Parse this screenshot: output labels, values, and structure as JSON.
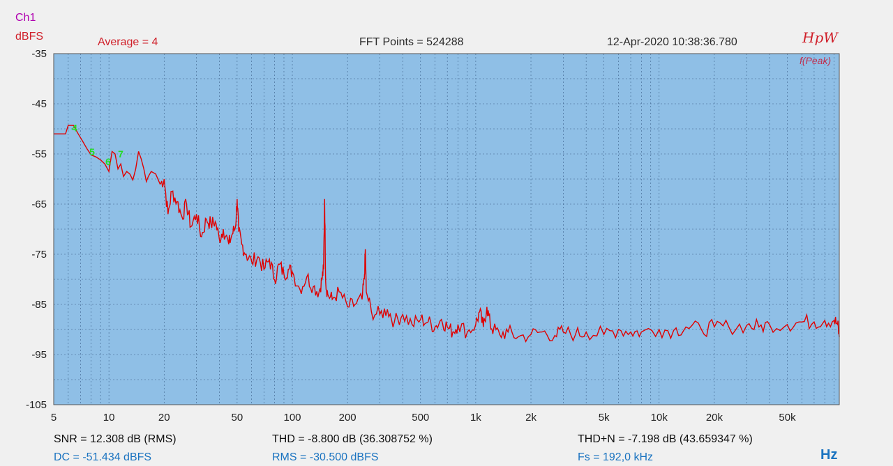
{
  "header": {
    "channel": "Ch1",
    "unit": "dBFS",
    "average": "Average = 4",
    "fft_points": "FFT Points = 524288",
    "timestamp": "12-Apr-2020 10:38:36.780",
    "brand": "HpW",
    "mode": "f(Peak)"
  },
  "stats": {
    "snr": "SNR = 12.308 dB (RMS)",
    "thd": "THD = -8.800 dB (36.308752 %)",
    "thdn": "THD+N = -7.198 dB (43.659347 %)",
    "dc": "DC = -51.434 dBFS",
    "rms": "RMS = -30.500 dBFS",
    "fs": "Fs = 192,0 kHz"
  },
  "x_unit": "Hz",
  "colors": {
    "plot_bg": "#8fbfe6",
    "grid": "#3a5f88",
    "trace": "#e00000",
    "harmonic_marker": "#22dd22"
  },
  "chart_data": {
    "type": "line",
    "xscale": "log",
    "xlim": [
      5,
      96000
    ],
    "ylim": [
      -105,
      -35
    ],
    "ylabel": "dBFS",
    "xlabel": "Hz",
    "grid": true,
    "x_ticks": [
      {
        "v": 5,
        "label": "5"
      },
      {
        "v": 10,
        "label": "10"
      },
      {
        "v": 20,
        "label": "20"
      },
      {
        "v": 50,
        "label": "50"
      },
      {
        "v": 100,
        "label": "100"
      },
      {
        "v": 200,
        "label": "200"
      },
      {
        "v": 500,
        "label": "500"
      },
      {
        "v": 1000,
        "label": "1k"
      },
      {
        "v": 2000,
        "label": "2k"
      },
      {
        "v": 5000,
        "label": "5k"
      },
      {
        "v": 10000,
        "label": "10k"
      },
      {
        "v": 20000,
        "label": "20k"
      },
      {
        "v": 50000,
        "label": "50k"
      }
    ],
    "y_ticks": [
      -35,
      -45,
      -55,
      -65,
      -75,
      -85,
      -95,
      -105
    ],
    "harmonic_labels": [
      {
        "label": "4",
        "x": 6.5,
        "y": -50.5
      },
      {
        "label": "5",
        "x": 8.1,
        "y": -55.3
      },
      {
        "label": "6",
        "x": 9.9,
        "y": -57.2
      },
      {
        "label": "7",
        "x": 11.6,
        "y": -55.7
      }
    ],
    "series": [
      {
        "x": [
          5,
          5.8,
          6.0,
          6.4,
          6.8,
          7.2,
          7.6,
          8.0,
          8.5,
          9.0,
          9.5,
          10.0,
          10.4,
          10.8,
          11.2,
          11.6,
          12.0,
          12.5,
          13.0,
          13.5,
          14.0,
          14.5,
          15.0,
          15.5,
          16.0,
          16.4,
          17.0,
          18.0,
          19.0,
          20.0,
          21.0,
          22.0,
          23.5,
          25.0,
          26.5,
          28.0,
          30.0,
          32.0,
          34.0,
          36.0,
          38.0,
          40.0,
          42.0,
          45.0,
          47.0,
          49.0,
          50.0,
          51.0,
          53.0,
          56.0,
          60.0,
          65.0,
          70.0,
          75.0,
          80.0,
          85.0,
          90.0,
          95.0,
          100.0,
          110.0,
          120.0,
          130.0,
          140.0,
          145.0,
          148.0,
          150.0,
          152.0,
          156.0,
          165.0,
          180.0,
          200.0,
          220.0,
          240.0,
          247.0,
          250.0,
          253.0,
          270.0,
          300.0,
          330.0,
          360.0,
          400.0,
          450.0,
          500.0,
          550.0,
          600.0,
          650.0,
          700.0,
          750.0,
          800.0,
          900.0,
          1000.0,
          1050.0,
          1100.0,
          1150.0,
          1200.0,
          1250.0,
          1350.0,
          1500.0,
          1700.0,
          2000.0,
          2300.0,
          2700.0,
          3000.0,
          3500.0,
          4000.0,
          5000.0,
          6000.0,
          7000.0,
          8000.0,
          10000.0,
          12000.0,
          14000.0,
          17000.0,
          20000.0,
          24000.0,
          30000.0,
          35000.0,
          40000.0,
          50000.0,
          60000.0,
          70000.0,
          80000.0,
          90000.0,
          94000.0,
          96000.0
        ],
        "y": [
          -51.0,
          -51.0,
          -49.3,
          -49.3,
          -51.0,
          -52.5,
          -54.0,
          -55.2,
          -55.6,
          -56.2,
          -57.0,
          -58.5,
          -54.5,
          -55.0,
          -58.0,
          -57.0,
          -59.5,
          -58.5,
          -59.0,
          -60.2,
          -58.0,
          -54.5,
          -56.0,
          -58.0,
          -60.5,
          -59.5,
          -58.5,
          -59.0,
          -61.0,
          -60.0,
          -67.0,
          -62.5,
          -64.5,
          -67.5,
          -65.0,
          -69.5,
          -67.0,
          -71.5,
          -68.0,
          -69.0,
          -68.5,
          -72.0,
          -70.0,
          -73.0,
          -71.0,
          -69.5,
          -64.0,
          -70.5,
          -73.0,
          -75.0,
          -76.5,
          -75.5,
          -78.0,
          -76.0,
          -80.0,
          -77.0,
          -79.0,
          -78.0,
          -78.5,
          -82.0,
          -79.5,
          -81.5,
          -82.5,
          -80.0,
          -78.0,
          -64.0,
          -80.5,
          -83.0,
          -84.0,
          -82.5,
          -85.5,
          -85.0,
          -84.0,
          -80.0,
          -74.0,
          -82.5,
          -86.5,
          -87.0,
          -86.0,
          -88.5,
          -87.0,
          -89.0,
          -88.0,
          -88.5,
          -89.5,
          -88.0,
          -89.5,
          -90.5,
          -89.0,
          -90.5,
          -89.0,
          -86.5,
          -89.5,
          -85.5,
          -89.0,
          -90.0,
          -91.0,
          -90.5,
          -91.5,
          -91.0,
          -90.5,
          -91.2,
          -90.5,
          -91.0,
          -90.5,
          -91.0,
          -90.0,
          -90.5,
          -90.5,
          -90.0,
          -90.2,
          -89.5,
          -90.0,
          -89.5,
          -89.5,
          -89.2,
          -89.5,
          -89.0,
          -89.0,
          -88.5,
          -88.5,
          -88.2,
          -88.2,
          -89.0,
          -91.5
        ]
      }
    ]
  }
}
